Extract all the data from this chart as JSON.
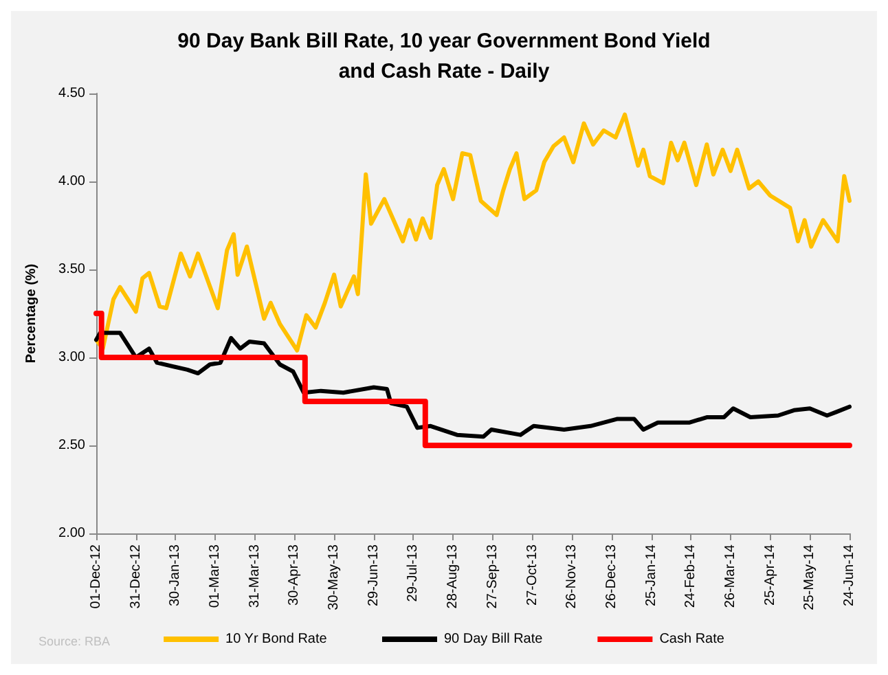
{
  "chart_data": {
    "type": "line",
    "title": "90 Day Bank Bill Rate, 10 year Government Bond Yield\nand Cash Rate - Daily",
    "ylabel": "Percentage (%)",
    "annotations": [
      "Source: RBA"
    ],
    "legend": "bottom",
    "xlim": [
      "2012-12-01",
      "2014-06-24"
    ],
    "xticks": [
      {
        "value": "2012-12-01",
        "label": "01-Dec-12"
      },
      {
        "value": "2012-12-31",
        "label": "31-Dec-12"
      },
      {
        "value": "2013-01-30",
        "label": "30-Jan-13"
      },
      {
        "value": "2013-03-01",
        "label": "01-Mar-13"
      },
      {
        "value": "2013-03-31",
        "label": "31-Mar-13"
      },
      {
        "value": "2013-04-30",
        "label": "30-Apr-13"
      },
      {
        "value": "2013-05-30",
        "label": "30-May-13"
      },
      {
        "value": "2013-06-29",
        "label": "29-Jun-13"
      },
      {
        "value": "2013-07-29",
        "label": "29-Jul-13"
      },
      {
        "value": "2013-08-28",
        "label": "28-Aug-13"
      },
      {
        "value": "2013-09-27",
        "label": "27-Sep-13"
      },
      {
        "value": "2013-10-27",
        "label": "27-Oct-13"
      },
      {
        "value": "2013-11-26",
        "label": "26-Nov-13"
      },
      {
        "value": "2013-12-26",
        "label": "26-Dec-13"
      },
      {
        "value": "2014-01-25",
        "label": "25-Jan-14"
      },
      {
        "value": "2014-02-24",
        "label": "24-Feb-14"
      },
      {
        "value": "2014-03-26",
        "label": "26-Mar-14"
      },
      {
        "value": "2014-04-25",
        "label": "25-Apr-14"
      },
      {
        "value": "2014-05-25",
        "label": "25-May-14"
      },
      {
        "value": "2014-06-24",
        "label": "24-Jun-14"
      }
    ],
    "ylim": [
      2,
      4.5
    ],
    "yticks": [
      {
        "value": 2,
        "label": "2.00"
      },
      {
        "value": 2.5,
        "label": "2.50"
      },
      {
        "value": 3,
        "label": "3.00"
      },
      {
        "value": 3.5,
        "label": "3.50"
      },
      {
        "value": 4,
        "label": "4.00"
      },
      {
        "value": 4.5,
        "label": "4.50"
      }
    ],
    "series": [
      {
        "name": "10 Yr Bond Rate",
        "color": "#ffc000",
        "x": [
          "2012-12-01",
          "2012-12-06",
          "2012-12-14",
          "2012-12-19",
          "2012-12-31",
          "2013-01-05",
          "2013-01-10",
          "2013-01-18",
          "2013-01-23",
          "2013-02-03",
          "2013-02-10",
          "2013-02-16",
          "2013-03-03",
          "2013-03-10",
          "2013-03-15",
          "2013-03-18",
          "2013-03-25",
          "2013-04-01",
          "2013-04-07",
          "2013-04-12",
          "2013-04-19",
          "2013-05-02",
          "2013-05-09",
          "2013-05-16",
          "2013-05-23",
          "2013-05-30",
          "2013-06-04",
          "2013-06-14",
          "2013-06-17",
          "2013-06-23",
          "2013-06-27",
          "2013-07-07",
          "2013-07-21",
          "2013-07-26",
          "2013-07-31",
          "2013-08-05",
          "2013-08-11",
          "2013-08-16",
          "2013-08-21",
          "2013-08-28",
          "2013-09-04",
          "2013-09-10",
          "2013-09-18",
          "2013-09-30",
          "2013-10-05",
          "2013-10-10",
          "2013-10-15",
          "2013-10-21",
          "2013-10-30",
          "2013-11-05",
          "2013-11-12",
          "2013-11-20",
          "2013-11-27",
          "2013-12-05",
          "2013-12-12",
          "2013-12-20",
          "2013-12-29",
          "2014-01-05",
          "2014-01-15",
          "2014-01-19",
          "2014-01-24",
          "2014-02-03",
          "2014-02-09",
          "2014-02-14",
          "2014-02-19",
          "2014-02-28",
          "2014-03-08",
          "2014-03-13",
          "2014-03-20",
          "2014-03-26",
          "2014-03-31",
          "2014-04-09",
          "2014-04-16",
          "2014-04-25",
          "2014-05-10",
          "2014-05-16",
          "2014-05-21",
          "2014-05-26",
          "2014-06-04",
          "2014-06-15",
          "2014-06-20",
          "2014-06-24"
        ],
        "values": [
          3.1,
          3.05,
          3.33,
          3.4,
          3.26,
          3.45,
          3.48,
          3.29,
          3.28,
          3.59,
          3.46,
          3.59,
          3.28,
          3.61,
          3.7,
          3.47,
          3.63,
          3.41,
          3.22,
          3.31,
          3.19,
          3.04,
          3.24,
          3.17,
          3.31,
          3.47,
          3.29,
          3.46,
          3.36,
          4.04,
          3.76,
          3.9,
          3.66,
          3.78,
          3.67,
          3.79,
          3.68,
          3.98,
          4.07,
          3.9,
          4.16,
          4.15,
          3.89,
          3.81,
          3.95,
          4.07,
          4.16,
          3.9,
          3.95,
          4.11,
          4.2,
          4.25,
          4.11,
          4.33,
          4.21,
          4.29,
          4.25,
          4.38,
          4.09,
          4.18,
          4.03,
          3.99,
          4.22,
          4.12,
          4.22,
          3.98,
          4.21,
          4.04,
          4.18,
          4.06,
          4.18,
          3.96,
          4.0,
          3.92,
          3.85,
          3.66,
          3.78,
          3.63,
          3.78,
          3.66,
          4.03,
          3.89
        ]
      },
      {
        "name": "90 Day Bill Rate",
        "color": "#000000",
        "x": [
          "2012-12-01",
          "2012-12-04",
          "2012-12-19",
          "2012-12-31",
          "2013-01-10",
          "2013-01-16",
          "2013-02-08",
          "2013-02-16",
          "2013-02-25",
          "2013-03-05",
          "2013-03-13",
          "2013-03-20",
          "2013-03-27",
          "2013-04-07",
          "2013-04-19",
          "2013-04-29",
          "2013-05-07",
          "2013-05-20",
          "2013-06-06",
          "2013-06-29",
          "2013-07-09",
          "2013-07-12",
          "2013-07-24",
          "2013-08-01",
          "2013-08-11",
          "2013-08-31",
          "2013-09-20",
          "2013-09-26",
          "2013-10-18",
          "2013-10-28",
          "2013-11-20",
          "2013-12-10",
          "2013-12-30",
          "2014-01-12",
          "2014-01-19",
          "2014-01-30",
          "2014-02-23",
          "2014-03-08",
          "2014-03-21",
          "2014-03-28",
          "2014-04-10",
          "2014-05-01",
          "2014-05-13",
          "2014-05-25",
          "2014-06-07",
          "2014-06-14",
          "2014-06-24"
        ],
        "values": [
          3.1,
          3.14,
          3.14,
          3.0,
          3.05,
          2.97,
          2.93,
          2.91,
          2.96,
          2.97,
          3.11,
          3.05,
          3.09,
          3.08,
          2.96,
          2.92,
          2.8,
          2.81,
          2.8,
          2.83,
          2.82,
          2.74,
          2.72,
          2.6,
          2.61,
          2.56,
          2.55,
          2.59,
          2.56,
          2.61,
          2.59,
          2.61,
          2.65,
          2.65,
          2.59,
          2.63,
          2.63,
          2.66,
          2.66,
          2.71,
          2.66,
          2.67,
          2.7,
          2.71,
          2.67,
          2.69,
          2.72
        ]
      },
      {
        "name": "Cash Rate",
        "type": "step",
        "color": "#ff0000",
        "x": [
          "2012-12-01",
          "2012-12-05",
          "2013-05-08",
          "2013-08-07",
          "2014-06-24"
        ],
        "values": [
          3.25,
          3.0,
          2.75,
          2.5,
          2.5
        ]
      }
    ]
  }
}
